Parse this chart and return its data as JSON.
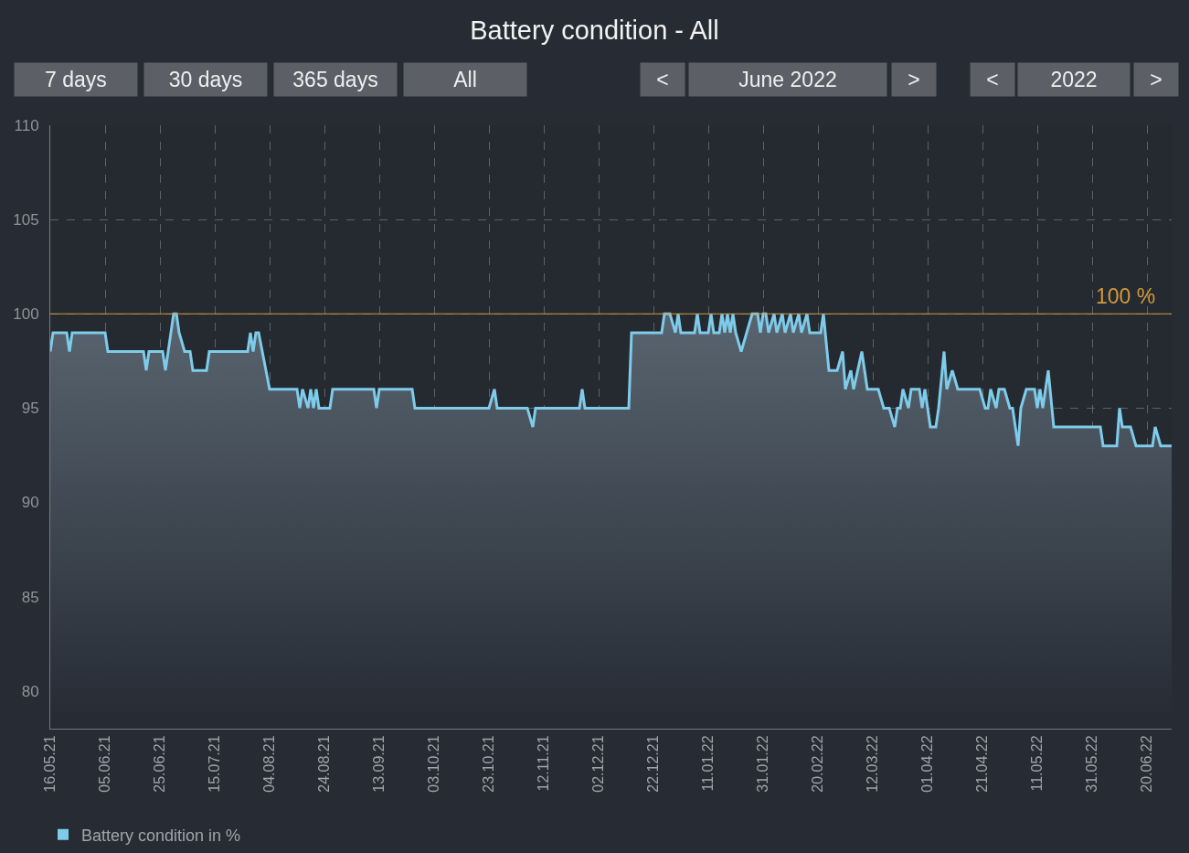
{
  "chart_data": {
    "type": "area",
    "title": "Battery condition - All",
    "annotations": [
      "7 days",
      "30 days",
      "365 days",
      "All",
      "<",
      "June 2022",
      ">",
      "<",
      "2022",
      ">"
    ],
    "x": [
      "2021-05-16",
      "2021-05-17",
      "2021-05-22",
      "2021-05-23",
      "2021-05-24",
      "2021-06-05",
      "2021-06-06",
      "2021-06-19",
      "2021-06-20",
      "2021-06-21",
      "2021-06-26",
      "2021-06-27",
      "2021-06-30",
      "2021-07-01",
      "2021-07-02",
      "2021-07-04",
      "2021-07-06",
      "2021-07-07",
      "2021-07-12",
      "2021-07-13",
      "2021-07-27",
      "2021-07-28",
      "2021-07-29",
      "2021-07-30",
      "2021-07-31",
      "2021-08-04",
      "2021-08-14",
      "2021-08-15",
      "2021-08-16",
      "2021-08-18",
      "2021-08-19",
      "2021-08-20",
      "2021-08-21",
      "2021-08-22",
      "2021-08-26",
      "2021-08-27",
      "2021-09-11",
      "2021-09-12",
      "2021-09-13",
      "2021-09-25",
      "2021-09-26",
      "2021-10-23",
      "2021-10-25",
      "2021-10-26",
      "2021-11-06",
      "2021-11-08",
      "2021-11-09",
      "2021-11-25",
      "2021-11-26",
      "2021-11-27",
      "2021-12-13",
      "2021-12-14",
      "2021-12-25",
      "2021-12-26",
      "2021-12-28",
      "2021-12-30",
      "2021-12-31",
      "2022-01-01",
      "2022-01-06",
      "2022-01-07",
      "2022-01-08",
      "2022-01-11",
      "2022-01-12",
      "2022-01-13",
      "2022-01-15",
      "2022-01-16",
      "2022-01-17",
      "2022-01-18",
      "2022-01-19",
      "2022-01-20",
      "2022-01-21",
      "2022-01-23",
      "2022-01-25",
      "2022-01-27",
      "2022-01-29",
      "2022-01-30",
      "2022-01-31",
      "2022-02-01",
      "2022-02-02",
      "2022-02-04",
      "2022-02-05",
      "2022-02-07",
      "2022-02-08",
      "2022-02-10",
      "2022-02-11",
      "2022-02-13",
      "2022-02-14",
      "2022-02-16",
      "2022-02-17",
      "2022-02-21",
      "2022-02-22",
      "2022-02-24",
      "2022-02-27",
      "2022-03-01",
      "2022-03-02",
      "2022-03-04",
      "2022-03-05",
      "2022-03-08",
      "2022-03-10",
      "2022-03-14",
      "2022-03-16",
      "2022-03-18",
      "2022-03-20",
      "2022-03-21",
      "2022-03-22",
      "2022-03-23",
      "2022-03-25",
      "2022-03-26",
      "2022-03-29",
      "2022-03-30",
      "2022-03-31",
      "2022-04-02",
      "2022-04-04",
      "2022-04-05",
      "2022-04-07",
      "2022-04-08",
      "2022-04-10",
      "2022-04-12",
      "2022-04-20",
      "2022-04-22",
      "2022-04-23",
      "2022-04-24",
      "2022-04-26",
      "2022-04-27",
      "2022-04-29",
      "2022-05-01",
      "2022-05-02",
      "2022-05-04",
      "2022-05-05",
      "2022-05-07",
      "2022-05-10",
      "2022-05-11",
      "2022-05-12",
      "2022-05-13",
      "2022-05-15",
      "2022-05-17",
      "2022-06-03",
      "2022-06-04",
      "2022-06-09",
      "2022-06-10",
      "2022-06-11",
      "2022-06-14",
      "2022-06-16",
      "2022-06-22",
      "2022-06-23",
      "2022-06-25",
      "2022-06-29"
    ],
    "series": [
      {
        "name": "Battery condition in %",
        "color": "#7ecbea",
        "values": [
          98,
          99,
          99,
          98,
          99,
          99,
          98,
          98,
          97,
          98,
          98,
          97,
          100,
          100,
          99,
          98,
          98,
          97,
          97,
          98,
          98,
          99,
          98,
          99,
          99,
          96,
          96,
          95,
          96,
          95,
          96,
          95,
          96,
          95,
          95,
          96,
          96,
          95,
          96,
          96,
          95,
          95,
          96,
          95,
          95,
          94,
          95,
          95,
          96,
          95,
          95,
          99,
          99,
          100,
          100,
          99,
          100,
          99,
          99,
          100,
          99,
          99,
          100,
          99,
          99,
          100,
          99,
          100,
          99,
          100,
          99,
          98,
          99,
          100,
          100,
          99,
          100,
          100,
          99,
          100,
          99,
          100,
          99,
          100,
          99,
          100,
          99,
          100,
          99,
          99,
          100,
          97,
          97,
          98,
          96,
          97,
          96,
          98,
          96,
          96,
          95,
          95,
          94,
          95,
          95,
          96,
          95,
          96,
          96,
          95,
          96,
          94,
          94,
          95,
          98,
          96,
          97,
          96,
          96,
          95,
          95,
          96,
          95,
          96,
          96,
          95,
          95,
          93,
          95,
          96,
          96,
          95,
          96,
          95,
          97,
          94,
          94,
          93,
          93,
          95,
          94,
          94,
          93,
          93,
          94,
          93,
          93
        ]
      }
    ],
    "xlim": [
      "2021-05-16",
      "2022-06-29"
    ],
    "xticks": [
      {
        "value": "2021-05-16",
        "label": "16.05.21"
      },
      {
        "value": "2021-06-05",
        "label": "05.06.21"
      },
      {
        "value": "2021-06-25",
        "label": "25.06.21"
      },
      {
        "value": "2021-07-15",
        "label": "15.07.21"
      },
      {
        "value": "2021-08-04",
        "label": "04.08.21"
      },
      {
        "value": "2021-08-24",
        "label": "24.08.21"
      },
      {
        "value": "2021-09-13",
        "label": "13.09.21"
      },
      {
        "value": "2021-10-03",
        "label": "03.10.21"
      },
      {
        "value": "2021-10-23",
        "label": "23.10.21"
      },
      {
        "value": "2021-11-12",
        "label": "12.11.21"
      },
      {
        "value": "2021-12-02",
        "label": "02.12.21"
      },
      {
        "value": "2021-12-22",
        "label": "22.12.21"
      },
      {
        "value": "2022-01-11",
        "label": "11.01.22"
      },
      {
        "value": "2022-01-31",
        "label": "31.01.22"
      },
      {
        "value": "2022-02-20",
        "label": "20.02.22"
      },
      {
        "value": "2022-03-12",
        "label": "12.03.22"
      },
      {
        "value": "2022-04-01",
        "label": "01.04.22"
      },
      {
        "value": "2022-04-21",
        "label": "21.04.22"
      },
      {
        "value": "2022-05-11",
        "label": "11.05.22"
      },
      {
        "value": "2022-05-31",
        "label": "31.05.22"
      },
      {
        "value": "2022-06-20",
        "label": "20.06.22"
      }
    ],
    "ylim": [
      78,
      110
    ],
    "yticks": [
      80,
      85,
      90,
      95,
      100,
      105,
      110
    ],
    "ref_lines": [
      {
        "axis": "y",
        "value": 100,
        "label": "100 %",
        "color": "#d39b3c"
      }
    ],
    "grid": true,
    "legend": "bottom left"
  }
}
